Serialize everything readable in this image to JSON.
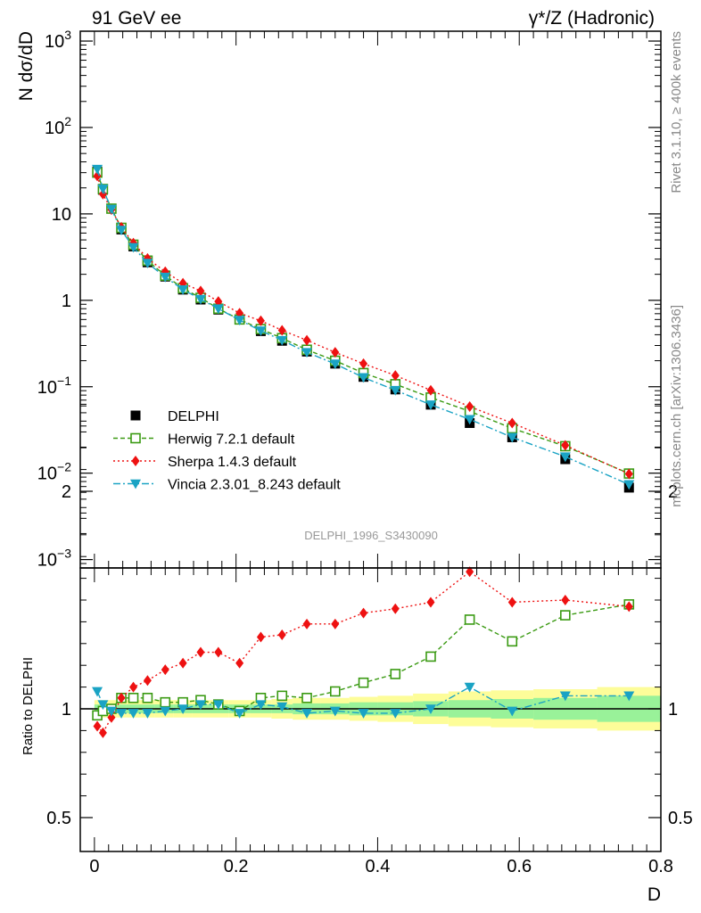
{
  "header": {
    "left": "91 GeV ee",
    "right": "γ*/Z (Hadronic)"
  },
  "side_labels": {
    "rivet": "Rivet 3.1.10, ≥ 400k events",
    "mcplots": "mcplots.cern.ch [arXiv:1306.3436]"
  },
  "analysis_id": "DELPHI_1996_S3430090",
  "chart_data": [
    {
      "type": "scatter",
      "panel": "main",
      "ylabel": "N dσ/dD",
      "xlabel": "D",
      "yscale": "log",
      "ylim": [
        0.0008,
        1300
      ],
      "xlim": [
        -0.02,
        0.8
      ],
      "y_ticks": [
        {
          "v": 0.001,
          "b": "10",
          "e": "−3"
        },
        {
          "v": 0.01,
          "b": "10",
          "e": "−2"
        },
        {
          "v": 0.1,
          "b": "10",
          "e": "−1"
        },
        {
          "v": 1,
          "b": "1",
          "e": ""
        },
        {
          "v": 10,
          "b": "10",
          "e": ""
        },
        {
          "v": 100,
          "b": "10",
          "e": "2"
        },
        {
          "v": 1000,
          "b": "10",
          "e": "3"
        }
      ],
      "x": [
        0.004,
        0.012,
        0.024,
        0.038,
        0.055,
        0.075,
        0.1,
        0.125,
        0.15,
        0.175,
        0.205,
        0.235,
        0.265,
        0.3,
        0.34,
        0.38,
        0.425,
        0.475,
        0.53,
        0.59,
        0.665,
        0.755
      ],
      "series": [
        {
          "name": "DELPHI",
          "color": "#000000",
          "marker": "square-filled",
          "line": "none",
          "values": [
            31.0,
            19.0,
            11.5,
            6.6,
            4.2,
            2.75,
            1.88,
            1.33,
            1.02,
            0.78,
            0.6,
            0.44,
            0.34,
            0.255,
            0.185,
            0.13,
            0.093,
            0.062,
            0.038,
            0.026,
            0.0145,
            0.0068
          ]
        },
        {
          "name": "Herwig 7.2.1 default",
          "color": "#3a9a12",
          "marker": "square-open",
          "line": "dashed",
          "values": [
            30.0,
            19.4,
            11.5,
            6.9,
            4.4,
            2.88,
            1.93,
            1.38,
            1.07,
            0.8,
            0.6,
            0.465,
            0.365,
            0.268,
            0.2,
            0.144,
            0.107,
            0.075,
            0.052,
            0.033,
            0.0205,
            0.0099
          ]
        },
        {
          "name": "Sherpa 1.4.3 default",
          "color": "#ee1111",
          "marker": "diamond",
          "line": "dotted",
          "values": [
            27.5,
            16.9,
            11.2,
            7.0,
            4.6,
            3.05,
            2.14,
            1.58,
            1.28,
            0.97,
            0.71,
            0.58,
            0.45,
            0.345,
            0.25,
            0.185,
            0.135,
            0.091,
            0.059,
            0.038,
            0.021,
            0.0098
          ]
        },
        {
          "name": "Vincia 2.3.01_8.243 default",
          "color": "#1aa3c4",
          "marker": "triangle-down",
          "line": "dashdot",
          "values": [
            33.0,
            19.5,
            11.4,
            6.5,
            4.1,
            2.7,
            1.86,
            1.33,
            1.03,
            0.8,
            0.59,
            0.445,
            0.345,
            0.25,
            0.184,
            0.128,
            0.091,
            0.062,
            0.042,
            0.026,
            0.0155,
            0.0074
          ]
        }
      ]
    },
    {
      "type": "scatter",
      "panel": "ratio",
      "ylabel": "Ratio to DELPHI",
      "xlabel": "D",
      "ylim": [
        0.4,
        2.5
      ],
      "xlim": [
        -0.02,
        0.8
      ],
      "y_ticks": [
        0.5,
        1,
        2
      ],
      "y_tick_labels": [
        "0.5",
        "1",
        "2"
      ],
      "x_ticks": [
        0,
        0.2,
        0.4,
        0.6,
        0.8
      ],
      "x_tick_labels": [
        "0",
        "0.2",
        "0.4",
        "0.6",
        "0.8"
      ],
      "x": [
        0.004,
        0.012,
        0.024,
        0.038,
        0.055,
        0.075,
        0.1,
        0.125,
        0.15,
        0.175,
        0.205,
        0.235,
        0.265,
        0.3,
        0.34,
        0.38,
        0.425,
        0.475,
        0.53,
        0.59,
        0.665,
        0.755
      ],
      "reference_bands": {
        "edges": [
          0,
          0.008,
          0.016,
          0.032,
          0.045,
          0.065,
          0.085,
          0.112,
          0.138,
          0.162,
          0.19,
          0.22,
          0.25,
          0.28,
          0.32,
          0.36,
          0.4,
          0.45,
          0.5,
          0.56,
          0.62,
          0.71,
          0.8
        ],
        "inner": [
          0.02,
          0.02,
          0.02,
          0.02,
          0.02,
          0.02,
          0.02,
          0.02,
          0.02,
          0.02,
          0.02,
          0.02,
          0.02,
          0.025,
          0.025,
          0.03,
          0.03,
          0.035,
          0.04,
          0.045,
          0.05,
          0.06
        ],
        "outer": [
          0.04,
          0.04,
          0.04,
          0.04,
          0.04,
          0.04,
          0.04,
          0.04,
          0.04,
          0.04,
          0.04,
          0.04,
          0.045,
          0.05,
          0.05,
          0.055,
          0.06,
          0.07,
          0.08,
          0.085,
          0.09,
          0.1
        ],
        "inner_color": "#99f299",
        "outer_color": "#fdfd99"
      },
      "series": [
        {
          "name": "Herwig 7.2.1 default",
          "color": "#3a9a12",
          "marker": "square-open",
          "line": "dashed",
          "values": [
            0.97,
            0.99,
            1.0,
            1.05,
            1.05,
            1.05,
            1.03,
            1.03,
            1.04,
            1.02,
            0.99,
            1.05,
            1.06,
            1.05,
            1.08,
            1.12,
            1.16,
            1.24,
            1.41,
            1.31,
            1.43,
            1.48
          ]
        },
        {
          "name": "Sherpa 1.4.3 default",
          "color": "#ee1111",
          "marker": "diamond",
          "line": "dotted",
          "values": [
            0.92,
            0.89,
            0.96,
            1.05,
            1.1,
            1.13,
            1.18,
            1.21,
            1.26,
            1.26,
            1.21,
            1.33,
            1.34,
            1.39,
            1.39,
            1.44,
            1.46,
            1.49,
            1.63,
            1.49,
            1.5,
            1.47
          ]
        },
        {
          "name": "Vincia 2.3.01_8.243 default",
          "color": "#1aa3c4",
          "marker": "triangle-down",
          "line": "dashdot",
          "values": [
            1.08,
            1.02,
            0.99,
            0.98,
            0.98,
            0.98,
            0.99,
            1.0,
            1.02,
            1.02,
            0.98,
            1.02,
            1.01,
            0.98,
            0.99,
            0.98,
            0.98,
            1.0,
            1.1,
            0.99,
            1.06,
            1.06
          ]
        }
      ]
    }
  ]
}
